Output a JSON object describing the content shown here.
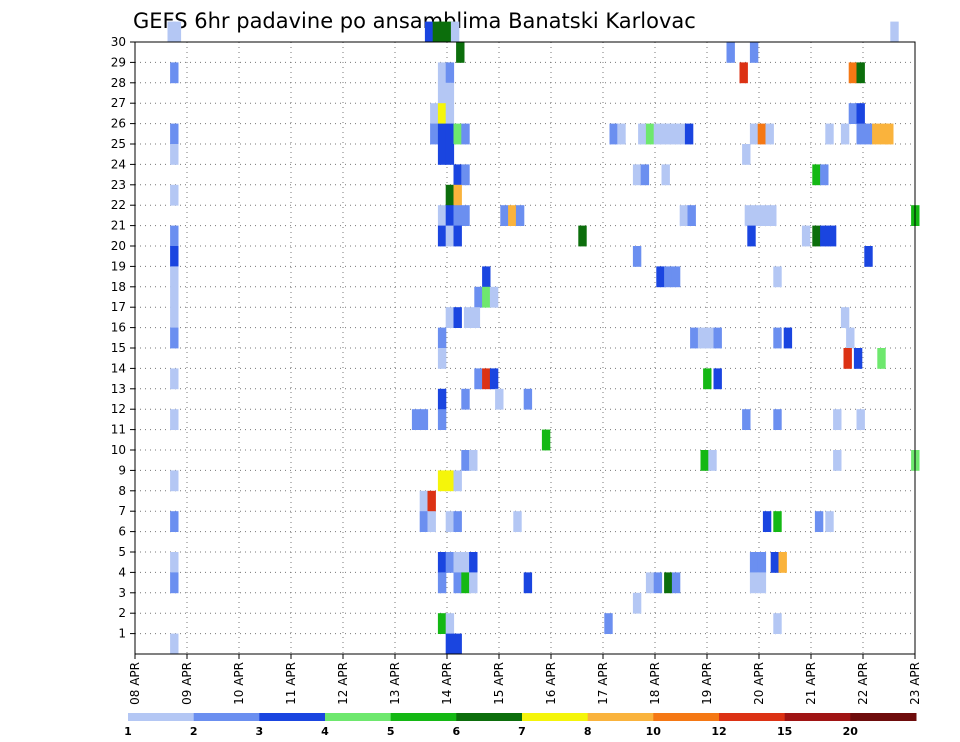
{
  "chart_data": {
    "type": "heatmap",
    "title": "GEFS 6hr padavine po ansamblima Banatski Karlovac",
    "xlabel": "",
    "ylabel": "",
    "x_ticks": [
      "08 APR",
      "09 APR",
      "10 APR",
      "11 APR",
      "12 APR",
      "13 APR",
      "14 APR",
      "15 APR",
      "16 APR",
      "17 APR",
      "18 APR",
      "19 APR",
      "20 APR",
      "21 APR",
      "22 APR",
      "23 APR"
    ],
    "xlim": [
      0,
      15
    ],
    "y_ticks": [
      1,
      2,
      3,
      4,
      5,
      6,
      7,
      8,
      9,
      10,
      11,
      12,
      13,
      14,
      15,
      16,
      17,
      18,
      19,
      20,
      21,
      22,
      23,
      24,
      25,
      26,
      27,
      28,
      29,
      30
    ],
    "ylim": [
      0,
      30
    ],
    "grid": true,
    "colorbar": {
      "labels": [
        "1",
        "2",
        "3",
        "4",
        "5",
        "6",
        "7",
        "8",
        "10",
        "12",
        "15",
        "20"
      ],
      "colors": [
        "#b4c7f4",
        "#6b8ff0",
        "#1a45e0",
        "#6ee86e",
        "#14b814",
        "#0c6e0c",
        "#f5f50a",
        "#fab33c",
        "#f57814",
        "#dc3214",
        "#a01414",
        "#6e0c0c"
      ],
      "location": "bottom"
    },
    "cells": [
      [
        30,
        0.7,
        0
      ],
      [
        30,
        0.8,
        0
      ],
      [
        30,
        5.65,
        2
      ],
      [
        30,
        5.8,
        5
      ],
      [
        30,
        5.9,
        5
      ],
      [
        30,
        6.05,
        5
      ],
      [
        30,
        6.15,
        0
      ],
      [
        30,
        14.6,
        0
      ],
      [
        29,
        6.25,
        5
      ],
      [
        29,
        11.45,
        1
      ],
      [
        29,
        11.9,
        1
      ],
      [
        28,
        0.75,
        1
      ],
      [
        28,
        5.9,
        0
      ],
      [
        28,
        6.05,
        1
      ],
      [
        28,
        11.7,
        9
      ],
      [
        28,
        13.8,
        8
      ],
      [
        28,
        13.95,
        5
      ],
      [
        27,
        5.9,
        0
      ],
      [
        27,
        6.05,
        0
      ],
      [
        26,
        5.75,
        0
      ],
      [
        26,
        5.9,
        6
      ],
      [
        26,
        6.05,
        0
      ],
      [
        26,
        13.8,
        1
      ],
      [
        26,
        13.95,
        2
      ],
      [
        25,
        0.75,
        1
      ],
      [
        25,
        5.75,
        1
      ],
      [
        25,
        5.9,
        2
      ],
      [
        25,
        6.05,
        2
      ],
      [
        25,
        6.2,
        3
      ],
      [
        25,
        6.35,
        1
      ],
      [
        25,
        9.2,
        1
      ],
      [
        25,
        9.35,
        0
      ],
      [
        25,
        9.75,
        0
      ],
      [
        25,
        9.9,
        3
      ],
      [
        25,
        10.05,
        0
      ],
      [
        25,
        10.2,
        0
      ],
      [
        25,
        10.35,
        0
      ],
      [
        25,
        10.5,
        0
      ],
      [
        25,
        10.65,
        2
      ],
      [
        25,
        11.9,
        0
      ],
      [
        25,
        12.05,
        8
      ],
      [
        25,
        12.2,
        0
      ],
      [
        25,
        13.35,
        0
      ],
      [
        25,
        13.65,
        0
      ],
      [
        25,
        13.95,
        1
      ],
      [
        25,
        14.1,
        1
      ],
      [
        25,
        14.25,
        7
      ],
      [
        25,
        14.4,
        7
      ],
      [
        25,
        14.5,
        7
      ],
      [
        24,
        0.75,
        0
      ],
      [
        24,
        5.9,
        2
      ],
      [
        24,
        6.05,
        2
      ],
      [
        24,
        11.75,
        0
      ],
      [
        23,
        6.2,
        2
      ],
      [
        23,
        6.35,
        1
      ],
      [
        23,
        9.65,
        0
      ],
      [
        23,
        9.8,
        1
      ],
      [
        23,
        10.2,
        0
      ],
      [
        23,
        13.1,
        4
      ],
      [
        23,
        13.25,
        1
      ],
      [
        22,
        0.75,
        0
      ],
      [
        22,
        6.05,
        5
      ],
      [
        22,
        6.2,
        7
      ],
      [
        21,
        5.9,
        0
      ],
      [
        21,
        6.05,
        2
      ],
      [
        21,
        6.2,
        1
      ],
      [
        21,
        6.35,
        1
      ],
      [
        21,
        7.1,
        1
      ],
      [
        21,
        7.25,
        7
      ],
      [
        21,
        7.4,
        1
      ],
      [
        21,
        10.55,
        0
      ],
      [
        21,
        10.7,
        1
      ],
      [
        21,
        11.8,
        0
      ],
      [
        21,
        11.95,
        0
      ],
      [
        21,
        12.1,
        0
      ],
      [
        21,
        12.25,
        0
      ],
      [
        21,
        15.0,
        4
      ],
      [
        20,
        0.75,
        1
      ],
      [
        20,
        5.9,
        2
      ],
      [
        20,
        6.05,
        0
      ],
      [
        20,
        6.2,
        2
      ],
      [
        20,
        8.6,
        5
      ],
      [
        20,
        11.85,
        2
      ],
      [
        20,
        12.9,
        0
      ],
      [
        20,
        13.1,
        5
      ],
      [
        20,
        13.25,
        2
      ],
      [
        20,
        13.4,
        2
      ],
      [
        19,
        0.75,
        2
      ],
      [
        19,
        9.65,
        1
      ],
      [
        19,
        14.1,
        2
      ],
      [
        18,
        0.75,
        0
      ],
      [
        18,
        6.75,
        2
      ],
      [
        18,
        10.1,
        2
      ],
      [
        18,
        10.25,
        1
      ],
      [
        18,
        10.4,
        1
      ],
      [
        18,
        12.35,
        0
      ],
      [
        17,
        0.75,
        0
      ],
      [
        17,
        6.6,
        1
      ],
      [
        17,
        6.75,
        3
      ],
      [
        17,
        6.9,
        0
      ],
      [
        16,
        0.75,
        0
      ],
      [
        16,
        6.05,
        0
      ],
      [
        16,
        6.2,
        2
      ],
      [
        16,
        6.4,
        0
      ],
      [
        16,
        6.55,
        0
      ],
      [
        16,
        13.65,
        0
      ],
      [
        15,
        0.75,
        1
      ],
      [
        15,
        5.9,
        1
      ],
      [
        15,
        10.75,
        1
      ],
      [
        15,
        10.9,
        0
      ],
      [
        15,
        11.05,
        0
      ],
      [
        15,
        11.2,
        1
      ],
      [
        15,
        12.35,
        1
      ],
      [
        15,
        12.55,
        2
      ],
      [
        15,
        13.75,
        0
      ],
      [
        14,
        5.9,
        0
      ],
      [
        14,
        13.7,
        9
      ],
      [
        14,
        13.9,
        2
      ],
      [
        14,
        14.35,
        3
      ],
      [
        13,
        0.75,
        0
      ],
      [
        13,
        6.6,
        1
      ],
      [
        13,
        6.75,
        9
      ],
      [
        13,
        6.9,
        2
      ],
      [
        13,
        11.0,
        4
      ],
      [
        13,
        11.2,
        2
      ],
      [
        12,
        5.9,
        2
      ],
      [
        12,
        6.35,
        1
      ],
      [
        12,
        7.0,
        0
      ],
      [
        12,
        7.55,
        1
      ],
      [
        11,
        0.75,
        0
      ],
      [
        11,
        5.4,
        1
      ],
      [
        11,
        5.55,
        1
      ],
      [
        11,
        5.9,
        1
      ],
      [
        11,
        11.75,
        1
      ],
      [
        11,
        12.35,
        1
      ],
      [
        11,
        13.5,
        0
      ],
      [
        11,
        13.95,
        0
      ],
      [
        10,
        7.9,
        4
      ],
      [
        9,
        6.35,
        1
      ],
      [
        9,
        6.5,
        0
      ],
      [
        9,
        10.95,
        4
      ],
      [
        9,
        11.1,
        0
      ],
      [
        9,
        13.5,
        0
      ],
      [
        9,
        15.0,
        3
      ],
      [
        8,
        0.75,
        0
      ],
      [
        8,
        5.9,
        6
      ],
      [
        8,
        6.05,
        6
      ],
      [
        8,
        6.2,
        0
      ],
      [
        7,
        5.55,
        0
      ],
      [
        7,
        5.7,
        9
      ],
      [
        6,
        0.75,
        1
      ],
      [
        6,
        5.55,
        1
      ],
      [
        6,
        5.7,
        0
      ],
      [
        6,
        6.05,
        0
      ],
      [
        6,
        6.2,
        1
      ],
      [
        6,
        7.35,
        0
      ],
      [
        6,
        12.15,
        2
      ],
      [
        6,
        12.35,
        4
      ],
      [
        6,
        13.15,
        1
      ],
      [
        6,
        13.35,
        0
      ],
      [
        4,
        0.75,
        0
      ],
      [
        4,
        5.9,
        2
      ],
      [
        4,
        6.05,
        1
      ],
      [
        4,
        6.2,
        0
      ],
      [
        4,
        6.35,
        0
      ],
      [
        4,
        6.5,
        2
      ],
      [
        4,
        11.9,
        1
      ],
      [
        4,
        12.05,
        1
      ],
      [
        4,
        12.3,
        2
      ],
      [
        4,
        12.45,
        7
      ],
      [
        3,
        0.75,
        1
      ],
      [
        3,
        5.9,
        1
      ],
      [
        3,
        6.2,
        1
      ],
      [
        3,
        6.35,
        4
      ],
      [
        3,
        6.5,
        0
      ],
      [
        3,
        7.55,
        2
      ],
      [
        3,
        9.9,
        0
      ],
      [
        3,
        10.05,
        1
      ],
      [
        3,
        10.25,
        5
      ],
      [
        3,
        10.4,
        1
      ],
      [
        3,
        11.9,
        0
      ],
      [
        3,
        12.05,
        0
      ],
      [
        2,
        9.65,
        0
      ],
      [
        1,
        5.9,
        4
      ],
      [
        1,
        6.05,
        0
      ],
      [
        1,
        9.1,
        1
      ],
      [
        1,
        12.35,
        0
      ],
      [
        0,
        0.75,
        0
      ],
      [
        0,
        6.05,
        2
      ],
      [
        0,
        6.2,
        2
      ]
    ]
  }
}
